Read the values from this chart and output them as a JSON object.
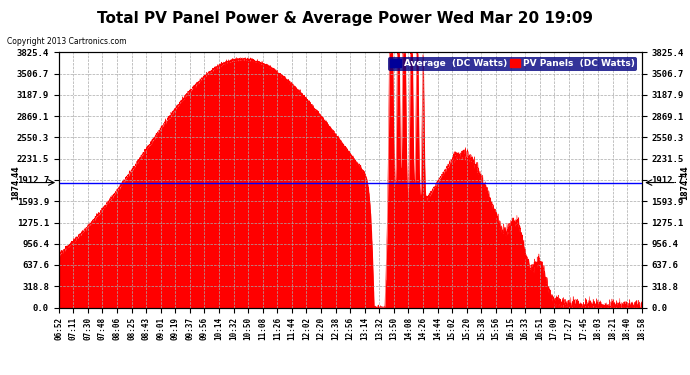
{
  "title": "Total PV Panel Power & Average Power Wed Mar 20 19:09",
  "copyright": "Copyright 2013 Cartronics.com",
  "avg_value": 1874.44,
  "ymax": 3825.4,
  "ymin": 0.0,
  "yticks": [
    0.0,
    318.8,
    637.6,
    956.4,
    1275.1,
    1593.9,
    1912.7,
    2231.5,
    2550.3,
    2869.1,
    3187.9,
    3506.7,
    3825.4
  ],
  "xtick_labels": [
    "06:52",
    "07:11",
    "07:30",
    "07:48",
    "08:06",
    "08:25",
    "08:43",
    "09:01",
    "09:19",
    "09:37",
    "09:56",
    "10:14",
    "10:32",
    "10:50",
    "11:08",
    "11:26",
    "11:44",
    "12:02",
    "12:20",
    "12:38",
    "12:56",
    "13:14",
    "13:32",
    "13:50",
    "14:08",
    "14:26",
    "14:44",
    "15:02",
    "15:20",
    "15:38",
    "15:56",
    "16:15",
    "16:33",
    "16:51",
    "17:09",
    "17:27",
    "17:45",
    "18:03",
    "18:21",
    "18:40",
    "18:58"
  ],
  "avg_line_color": "#0000FF",
  "pv_fill_color": "#FF0000",
  "background_color": "#FFFFFF",
  "grid_color": "#AAAAAA",
  "title_fontsize": 11,
  "legend_avg_color": "#000099",
  "legend_pv_color": "#FF0000",
  "avg_label": "Average  (DC Watts)",
  "pv_label": "PV Panels  (DC Watts)"
}
